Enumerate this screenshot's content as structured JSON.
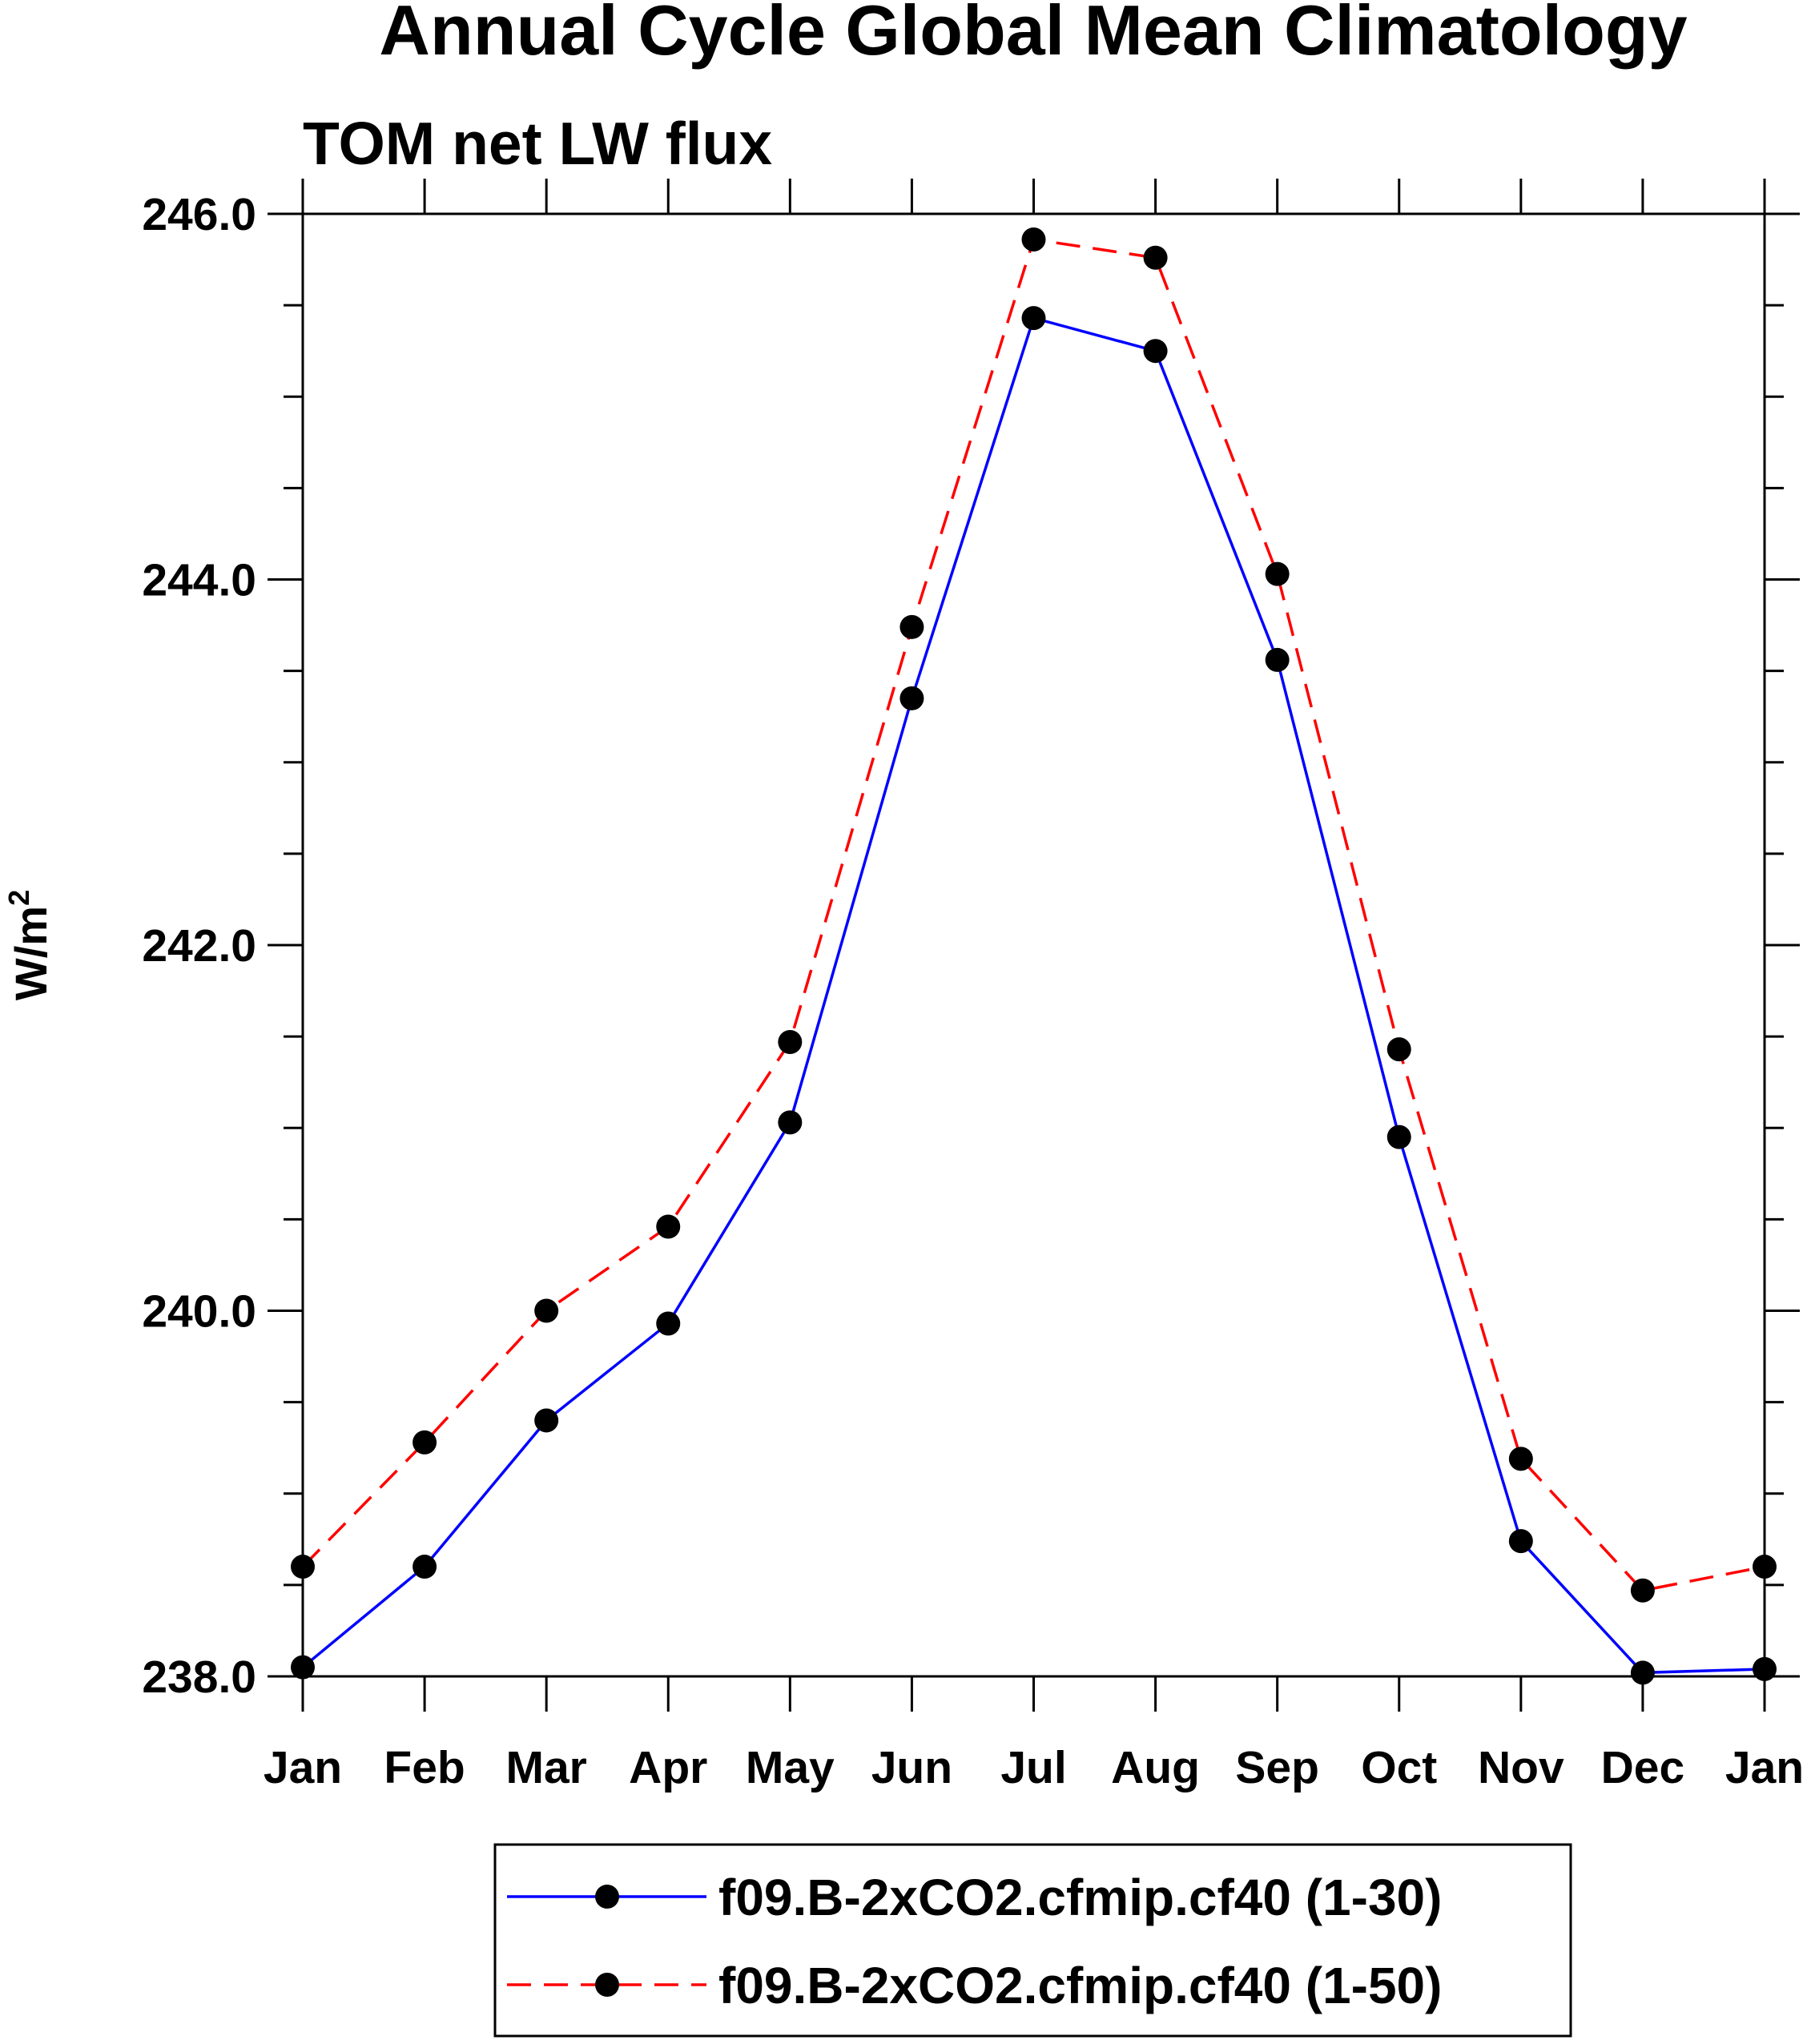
{
  "chart_data": {
    "type": "line",
    "title": "Annual Cycle Global Mean Climatology",
    "subtitle": "TOM net LW flux",
    "ylabel": "W/m",
    "ylabel_superscript": "2",
    "xlabel": "",
    "categories": [
      "Jan",
      "Feb",
      "Mar",
      "Apr",
      "May",
      "Jun",
      "Jul",
      "Aug",
      "Sep",
      "Oct",
      "Nov",
      "Dec",
      "Jan"
    ],
    "ylim": [
      238.0,
      246.0
    ],
    "yticks": [
      "238.0",
      "240.0",
      "242.0",
      "244.0",
      "246.0"
    ],
    "grid": false,
    "legend_position": "bottom-center",
    "series": [
      {
        "name": "f09.B-2xCO2.cfmip.cf40 (1-30)",
        "color": "#0000ff",
        "dash": "solid",
        "values": [
          238.05,
          238.6,
          239.4,
          239.93,
          241.03,
          243.35,
          245.43,
          245.25,
          243.56,
          240.95,
          238.74,
          238.02,
          238.04
        ]
      },
      {
        "name": "f09.B-2xCO2.cfmip.cf40 (1-50)",
        "color": "#ff0000",
        "dash": "dashed",
        "values": [
          238.6,
          239.28,
          240.0,
          240.46,
          241.47,
          243.74,
          245.86,
          245.76,
          244.03,
          241.43,
          239.19,
          238.47,
          238.6
        ]
      }
    ]
  }
}
